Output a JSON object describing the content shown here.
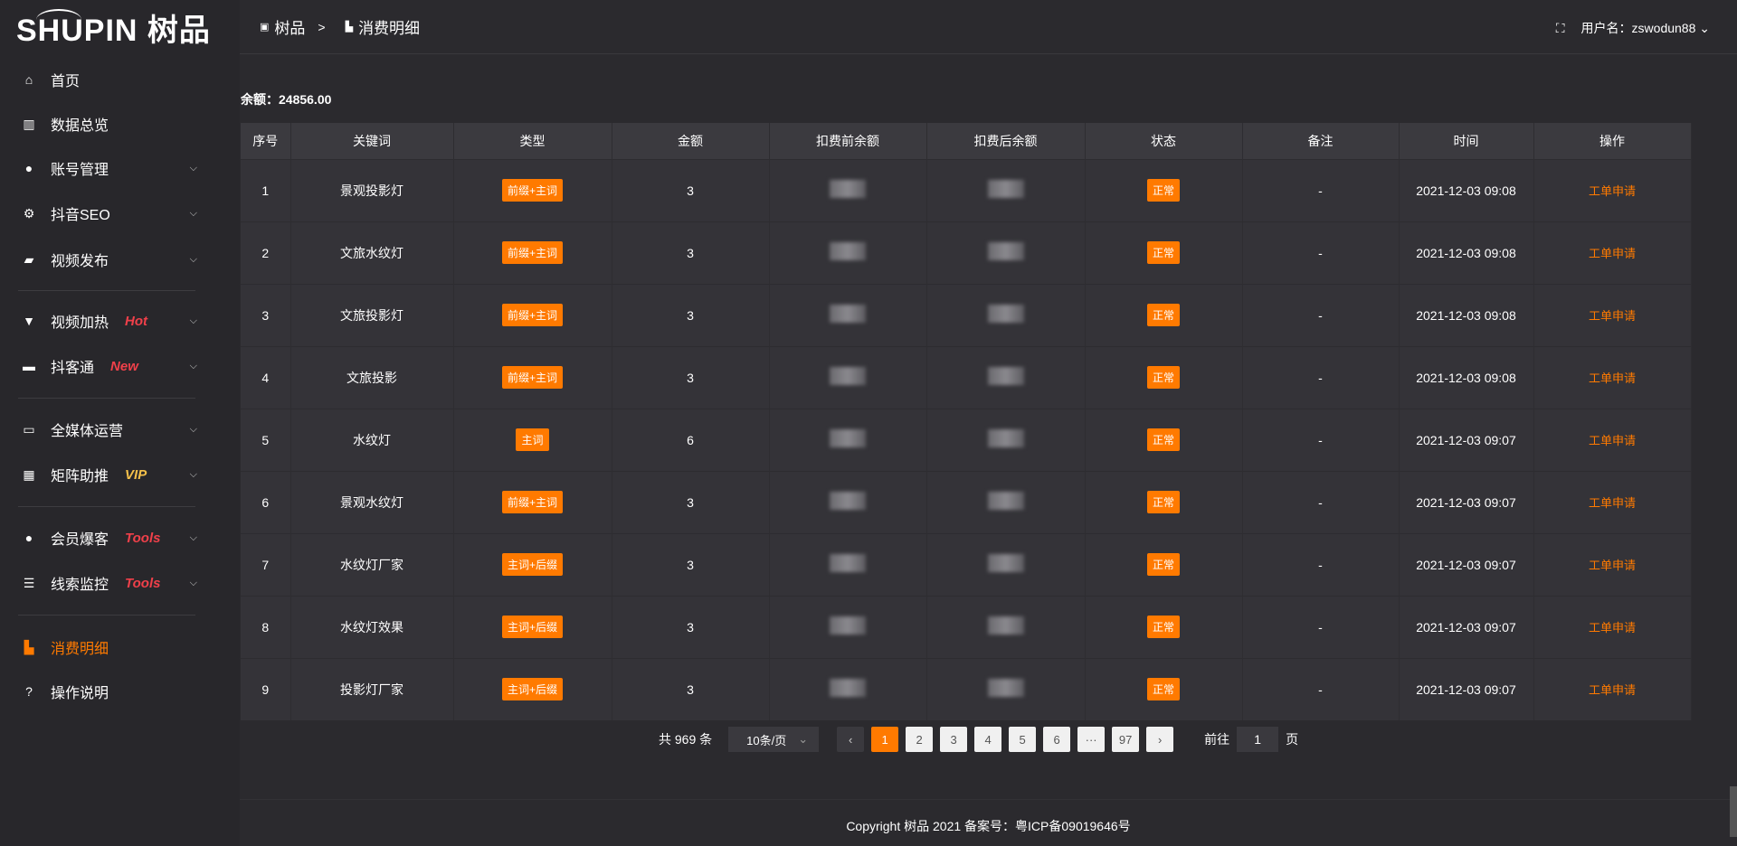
{
  "logo": {
    "text": "SHUPIN 树品"
  },
  "sidebar": {
    "items": [
      {
        "label": "首页",
        "icon": "home-icon",
        "glyph": "⌂",
        "tag": "",
        "chevron": false
      },
      {
        "label": "数据总览",
        "icon": "bar-chart-icon",
        "glyph": "▥",
        "tag": "",
        "chevron": false
      },
      {
        "label": "账号管理",
        "icon": "user-icon",
        "glyph": "●",
        "tag": "",
        "chevron": true
      },
      {
        "label": "抖音SEO",
        "icon": "gear-icon",
        "glyph": "⚙",
        "tag": "",
        "chevron": true
      },
      {
        "label": "视频发布",
        "icon": "video-camera-icon",
        "glyph": "▰",
        "tag": "",
        "chevron": true
      },
      {
        "label": "视频加热",
        "icon": "flame-sign-icon",
        "glyph": "▼",
        "tag": "Hot",
        "tag_color": "#f0404a",
        "chevron": true
      },
      {
        "label": "抖客通",
        "icon": "chat-icon",
        "glyph": "▬",
        "tag": "New",
        "tag_color": "#f0404a",
        "chevron": true
      },
      {
        "label": "全媒体运营",
        "icon": "monitor-icon",
        "glyph": "▭",
        "tag": "",
        "chevron": true
      },
      {
        "label": "矩阵助推",
        "icon": "grid-icon",
        "glyph": "▦",
        "tag": "VIP",
        "tag_color": "#f5c04a",
        "chevron": true
      },
      {
        "label": "会员爆客",
        "icon": "user-icon",
        "glyph": "●",
        "tag": "Tools",
        "tag_color": "#f0404a",
        "chevron": true
      },
      {
        "label": "线索监控",
        "icon": "sliders-icon",
        "glyph": "☰",
        "tag": "Tools",
        "tag_color": "#f0404a",
        "chevron": true
      },
      {
        "label": "消费明细",
        "icon": "wallet-icon",
        "glyph": "▙",
        "tag": "",
        "chevron": false,
        "active": true
      },
      {
        "label": "操作说明",
        "icon": "help-icon",
        "glyph": "?",
        "tag": "",
        "chevron": false
      }
    ]
  },
  "header": {
    "crumb_root": "树品",
    "crumb_sep": ">",
    "crumb_current": "消费明细",
    "user_label": "用户名：zswodun88"
  },
  "balance": "余额：24856.00",
  "table": {
    "columns": [
      "序号",
      "关键词",
      "类型",
      "金额",
      "扣费前余额",
      "扣费后余额",
      "状态",
      "备注",
      "时间",
      "操作"
    ],
    "rows": [
      {
        "no": "1",
        "keyword": "景观投影灯",
        "type": "前缀+主词",
        "amount": "3",
        "status": "正常",
        "note": "-",
        "time": "2021-12-03 09:08",
        "action": "工单申请"
      },
      {
        "no": "2",
        "keyword": "文旅水纹灯",
        "type": "前缀+主词",
        "amount": "3",
        "status": "正常",
        "note": "-",
        "time": "2021-12-03 09:08",
        "action": "工单申请"
      },
      {
        "no": "3",
        "keyword": "文旅投影灯",
        "type": "前缀+主词",
        "amount": "3",
        "status": "正常",
        "note": "-",
        "time": "2021-12-03 09:08",
        "action": "工单申请"
      },
      {
        "no": "4",
        "keyword": "文旅投影",
        "type": "前缀+主词",
        "amount": "3",
        "status": "正常",
        "note": "-",
        "time": "2021-12-03 09:08",
        "action": "工单申请"
      },
      {
        "no": "5",
        "keyword": "水纹灯",
        "type": "主词",
        "amount": "6",
        "status": "正常",
        "note": "-",
        "time": "2021-12-03 09:07",
        "action": "工单申请"
      },
      {
        "no": "6",
        "keyword": "景观水纹灯",
        "type": "前缀+主词",
        "amount": "3",
        "status": "正常",
        "note": "-",
        "time": "2021-12-03 09:07",
        "action": "工单申请"
      },
      {
        "no": "7",
        "keyword": "水纹灯厂家",
        "type": "主词+后缀",
        "amount": "3",
        "status": "正常",
        "note": "-",
        "time": "2021-12-03 09:07",
        "action": "工单申请"
      },
      {
        "no": "8",
        "keyword": "水纹灯效果",
        "type": "主词+后缀",
        "amount": "3",
        "status": "正常",
        "note": "-",
        "time": "2021-12-03 09:07",
        "action": "工单申请"
      },
      {
        "no": "9",
        "keyword": "投影灯厂家",
        "type": "主词+后缀",
        "amount": "3",
        "status": "正常",
        "note": "-",
        "time": "2021-12-03 09:07",
        "action": "工单申请"
      }
    ]
  },
  "pagination": {
    "total": "共 969 条",
    "page_size": "10条/页",
    "pages": [
      "1",
      "2",
      "3",
      "4",
      "5",
      "6",
      "···",
      "97"
    ],
    "current": "1",
    "prev": "‹",
    "next": "›",
    "goto_label": "前往",
    "goto_value": "1",
    "goto_suffix": "页"
  },
  "footer": "Copyright 树品 2021 备案号：粤ICP备09019646号",
  "colors": {
    "accent": "#ff7a00",
    "background": "#2b2a2e"
  }
}
